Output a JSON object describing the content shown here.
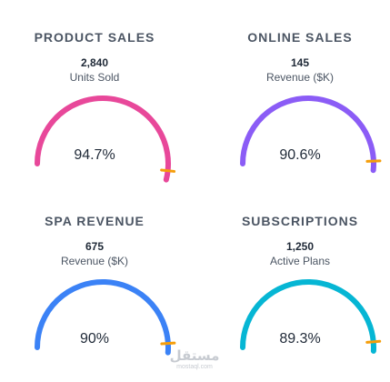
{
  "cards": [
    {
      "title": "PRODUCT SALES",
      "value": "2,840",
      "unit": "Units Sold",
      "percent_label": "94.7%",
      "percent": 94.7,
      "color": "#e8489a"
    },
    {
      "title": "ONLINE SALES",
      "value": "145",
      "unit": "Revenue ($K)",
      "percent_label": "90.6%",
      "percent": 90.6,
      "color": "#8b5cf6"
    },
    {
      "title": "SPA REVENUE",
      "value": "675",
      "unit": "Revenue ($K)",
      "percent_label": "90%",
      "percent": 90,
      "color": "#3b82f6"
    },
    {
      "title": "SUBSCRIPTIONS",
      "value": "1,250",
      "unit": "Active Plans",
      "percent_label": "89.3%",
      "percent": 89.3,
      "color": "#06b6d4"
    }
  ],
  "marker_color": "#f59e0b",
  "track_color": "#f3f4f6",
  "watermark": {
    "text": "مستقل",
    "subtext": "mostaql.com"
  }
}
